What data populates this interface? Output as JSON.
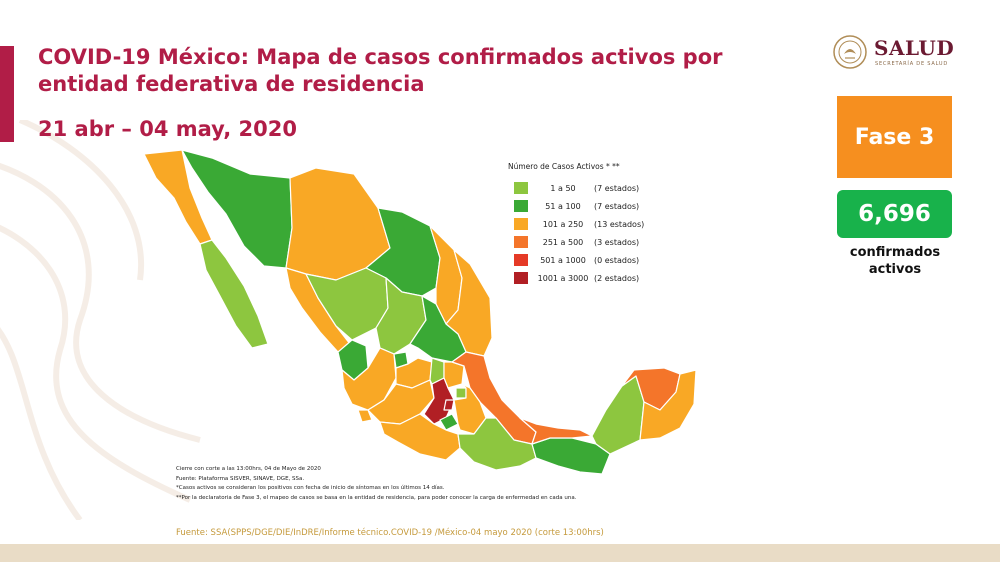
{
  "header": {
    "title": "COVID-19 México: Mapa de casos confirmados activos por entidad federativa de residencia",
    "subtitle": "21 abr – 04 may, 2020"
  },
  "logo": {
    "name": "SALUD",
    "subtitle": "SECRETARÍA DE SALUD"
  },
  "status": {
    "phase": "Fase 3",
    "confirmed_active": "6,696",
    "confirmed_label": "confirmados activos"
  },
  "legend": {
    "title": "Número de Casos Activos * **",
    "items": [
      {
        "range": "1 a 50",
        "count": "(7 estados)",
        "color": "#8dc63f"
      },
      {
        "range": "51 a 100",
        "count": "(7 estados)",
        "color": "#3aa935"
      },
      {
        "range": "101 a 250",
        "count": "(13 estados)",
        "color": "#f9a825"
      },
      {
        "range": "251 a 500",
        "count": "(3 estados)",
        "color": "#f4752a"
      },
      {
        "range": "501 a 1000",
        "count": "(0 estados)",
        "color": "#e53a26"
      },
      {
        "range": "1001 a 3000",
        "count": "(2 estados)",
        "color": "#b11f24"
      }
    ]
  },
  "notes": {
    "cutoff": "Cierre con corte a las 13:00hrs, 04 de Mayo de 2020",
    "source_platform": "Fuente: Plataforma SISVER, SINAVE, DGE, SSa.",
    "note1": "*Casos activos se consideran los positivos con fecha de inicio de síntomas en los últimos 14 días.",
    "note2": "**Por la declaratoria de Fase 3, el mapeo de casos se basa en la entidad de residencia, para poder conocer la carga de enfermedad en cada una."
  },
  "source": "Fuente: SSA(SPPS/DGE/DIE/InDRE/Informe técnico.COVID-19 /México-04 mayo 2020 (corte 13:00hrs)",
  "colors": {
    "accent": "#b11d47",
    "phase": "#f68f1f",
    "count": "#18b24b",
    "source_text": "#c59a3c"
  },
  "map_regions": [
    {
      "name": "Baja California",
      "level": "101 a 250"
    },
    {
      "name": "Baja California Sur",
      "level": "1 a 50"
    },
    {
      "name": "Sonora",
      "level": "51 a 100"
    },
    {
      "name": "Chihuahua",
      "level": "101 a 250"
    },
    {
      "name": "Coahuila",
      "level": "51 a 100"
    },
    {
      "name": "Nuevo León",
      "level": "101 a 250"
    },
    {
      "name": "Tamaulipas",
      "level": "101 a 250"
    },
    {
      "name": "Sinaloa",
      "level": "101 a 250"
    },
    {
      "name": "Durango",
      "level": "1 a 50"
    },
    {
      "name": "Zacatecas",
      "level": "1 a 50"
    },
    {
      "name": "San Luis Potosí",
      "level": "51 a 100"
    },
    {
      "name": "Nayarit",
      "level": "51 a 100"
    },
    {
      "name": "Jalisco",
      "level": "101 a 250"
    },
    {
      "name": "Aguascalientes",
      "level": "51 a 100"
    },
    {
      "name": "Guanajuato",
      "level": "101 a 250"
    },
    {
      "name": "Querétaro",
      "level": "1 a 50"
    },
    {
      "name": "Hidalgo",
      "level": "101 a 250"
    },
    {
      "name": "Veracruz",
      "level": "251 a 500"
    },
    {
      "name": "Michoacán",
      "level": "101 a 250"
    },
    {
      "name": "Colima",
      "level": "101 a 250"
    },
    {
      "name": "Estado de México",
      "level": "1001 a 3000"
    },
    {
      "name": "Ciudad de México",
      "level": "1001 a 3000"
    },
    {
      "name": "Morelos",
      "level": "51 a 100"
    },
    {
      "name": "Tlaxcala",
      "level": "1 a 50"
    },
    {
      "name": "Puebla",
      "level": "101 a 250"
    },
    {
      "name": "Guerrero",
      "level": "101 a 250"
    },
    {
      "name": "Oaxaca",
      "level": "1 a 50"
    },
    {
      "name": "Chiapas",
      "level": "51 a 100"
    },
    {
      "name": "Tabasco",
      "level": "251 a 500"
    },
    {
      "name": "Campeche",
      "level": "1 a 50"
    },
    {
      "name": "Yucatán",
      "level": "251 a 500"
    },
    {
      "name": "Quintana Roo",
      "level": "101 a 250"
    }
  ]
}
